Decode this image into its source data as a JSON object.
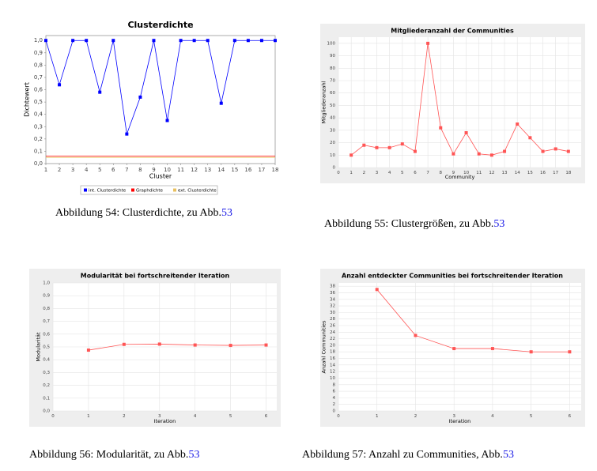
{
  "chart_data": [
    {
      "type": "line",
      "title": "Clusterdichte",
      "x_label": "Cluster",
      "y_label": "Dichtewert",
      "x": [
        1,
        2,
        3,
        4,
        5,
        6,
        7,
        8,
        9,
        10,
        11,
        12,
        13,
        14,
        15,
        16,
        17,
        18
      ],
      "series": [
        {
          "name": "int. Clusterdichte",
          "color": "#0000ff",
          "marker": true,
          "values": [
            1.0,
            0.64,
            1.0,
            1.0,
            0.58,
            1.0,
            0.24,
            0.54,
            1.0,
            0.35,
            1.0,
            1.0,
            1.0,
            0.49,
            1.0,
            1.0,
            1.0,
            1.0
          ]
        },
        {
          "name": "Graphdichte",
          "color": "#ff0000",
          "marker": false,
          "values": [
            0.06,
            0.06,
            0.06,
            0.06,
            0.06,
            0.06,
            0.06,
            0.06,
            0.06,
            0.06,
            0.06,
            0.06,
            0.06,
            0.06,
            0.06,
            0.06,
            0.06,
            0.06
          ]
        },
        {
          "name": "ext. Clusterdichte",
          "color": "#e8c060",
          "marker": false,
          "values": [
            0.05,
            0.05,
            0.05,
            0.05,
            0.05,
            0.05,
            0.05,
            0.05,
            0.05,
            0.05,
            0.05,
            0.05,
            0.05,
            0.05,
            0.05,
            0.05,
            0.05,
            0.05
          ]
        }
      ],
      "xlim": [
        1,
        18
      ],
      "xticks": [
        1,
        2,
        3,
        4,
        5,
        6,
        7,
        8,
        9,
        10,
        11,
        12,
        13,
        14,
        15,
        16,
        17,
        18
      ],
      "ylim": [
        0,
        1.04
      ],
      "yticks": [
        {
          "value": 0,
          "label": "0,0"
        },
        {
          "value": 0.1,
          "label": "0,1"
        },
        {
          "value": 0.2,
          "label": "0,2"
        },
        {
          "value": 0.3,
          "label": "0,3"
        },
        {
          "value": 0.4,
          "label": "0,4"
        },
        {
          "value": 0.5,
          "label": "0,5"
        },
        {
          "value": 0.6,
          "label": "0,6"
        },
        {
          "value": 0.7,
          "label": "0,7"
        },
        {
          "value": 0.8,
          "label": "0,8"
        },
        {
          "value": 0.9,
          "label": "0,9"
        },
        {
          "value": 1.0,
          "label": "1,0"
        }
      ],
      "grid": false,
      "legend": "bottom",
      "caption": "Abbildung 54: Clusterdichte, zu Abb.",
      "caption_ref": "53"
    },
    {
      "type": "line",
      "title": "Mitgliederanzahl der Communities",
      "x_label": "Community",
      "y_label": "Mitgliederanzahl",
      "x": [
        1,
        2,
        3,
        4,
        5,
        6,
        7,
        8,
        9,
        10,
        11,
        12,
        13,
        14,
        15,
        16,
        17,
        18
      ],
      "values": [
        10,
        18,
        16,
        16,
        19,
        13,
        100,
        32,
        11,
        28,
        11,
        10,
        13,
        35,
        24,
        13,
        15,
        13
      ],
      "color": "#ff5555",
      "xlim": [
        0,
        19
      ],
      "xticks": [
        0,
        1,
        2,
        3,
        4,
        5,
        6,
        7,
        8,
        9,
        10,
        11,
        12,
        13,
        14,
        15,
        16,
        17,
        18
      ],
      "ylim": [
        0,
        105
      ],
      "yticks": [
        0,
        10,
        20,
        30,
        40,
        50,
        60,
        70,
        80,
        90,
        100
      ],
      "grid": true,
      "caption": "Abbildung 55: Clustergrößen, zu Abb.",
      "caption_ref": "53"
    },
    {
      "type": "line",
      "title": "Modularität bei fortschreitender Iteration",
      "x_label": "Iteration",
      "y_label": "Modularität",
      "x": [
        1,
        2,
        3,
        4,
        5,
        6
      ],
      "values": [
        0.475,
        0.52,
        0.522,
        0.515,
        0.512,
        0.515
      ],
      "color": "#ff5555",
      "xlim": [
        0,
        6.3
      ],
      "xticks": [
        0,
        1,
        2,
        3,
        4,
        5,
        6
      ],
      "ylim": [
        0,
        1.0
      ],
      "yticks": [
        {
          "value": 0,
          "label": "0,0"
        },
        {
          "value": 0.1,
          "label": "0,1"
        },
        {
          "value": 0.2,
          "label": "0,2"
        },
        {
          "value": 0.3,
          "label": "0,3"
        },
        {
          "value": 0.4,
          "label": "0,4"
        },
        {
          "value": 0.5,
          "label": "0,5"
        },
        {
          "value": 0.6,
          "label": "0,6"
        },
        {
          "value": 0.7,
          "label": "0,7"
        },
        {
          "value": 0.8,
          "label": "0,8"
        },
        {
          "value": 0.9,
          "label": "0,9"
        },
        {
          "value": 1.0,
          "label": "1,0"
        }
      ],
      "grid": true,
      "caption": "Abbildung 56: Modularität, zu Abb.",
      "caption_ref": "53"
    },
    {
      "type": "line",
      "title": "Anzahl entdeckter Communities bei fortschreitender Iteration",
      "x_label": "Iteration",
      "y_label": "Anzahl Communities",
      "x": [
        1,
        2,
        3,
        4,
        5,
        6
      ],
      "values": [
        37,
        23,
        19,
        19,
        18,
        18
      ],
      "color": "#ff5555",
      "xlim": [
        0,
        6.3
      ],
      "xticks": [
        0,
        1,
        2,
        3,
        4,
        5,
        6
      ],
      "ylim": [
        0,
        39
      ],
      "yticks": [
        0,
        2,
        4,
        6,
        8,
        10,
        12,
        14,
        16,
        18,
        20,
        22,
        24,
        26,
        28,
        30,
        32,
        34,
        36,
        38
      ],
      "grid": true,
      "caption": "Abbildung 57: Anzahl zu Communities, Abb.",
      "caption_ref": "53"
    }
  ]
}
